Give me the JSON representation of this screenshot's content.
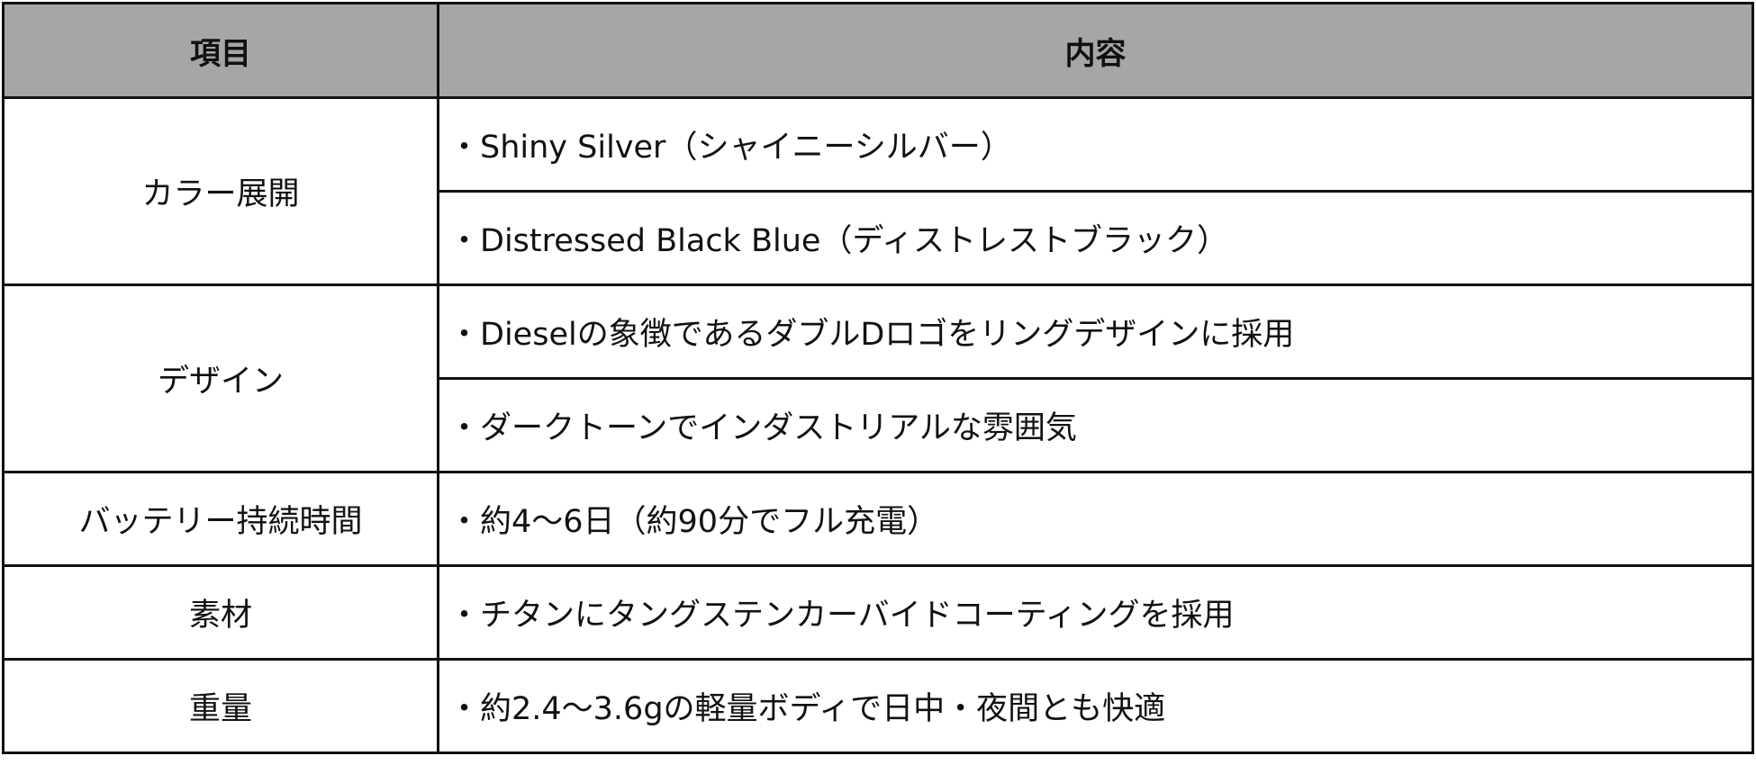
{
  "header": {
    "item": "項目",
    "content": "内容"
  },
  "rows": [
    {
      "item": "カラー展開",
      "contents": [
        "・Shiny Silver（シャイニーシルバー）",
        "・Distressed Black Blue（ディストレストブラック）"
      ]
    },
    {
      "item": "デザイン",
      "contents": [
        "・Dieselの象徴であるダブルDロゴをリングデザインに採用",
        "・ダークトーンでインダストリアルな雰囲気"
      ]
    },
    {
      "item": "バッテリー持続時間",
      "contents": [
        "・約4〜6日（約90分でフル充電）"
      ]
    },
    {
      "item": "素材",
      "contents": [
        "・チタンにタングステンカーバイドコーティングを採用"
      ]
    },
    {
      "item": "重量",
      "contents": [
        "・約2.4〜3.6gの軽量ボディで日中・夜間とも快適"
      ]
    }
  ],
  "colors": {
    "header_bg": "#a6a6a6",
    "border": "#111111"
  }
}
